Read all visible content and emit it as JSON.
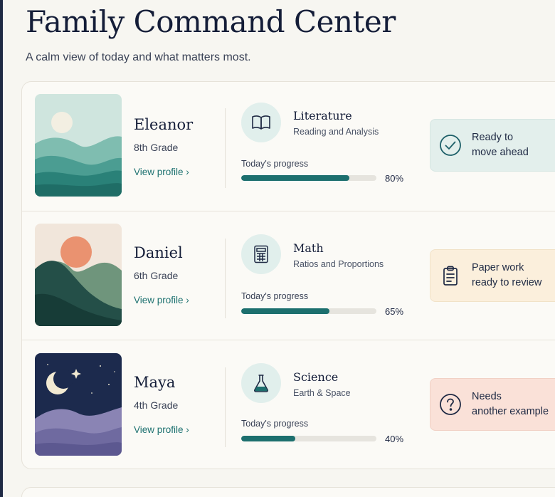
{
  "page": {
    "title": "Family Command Center",
    "subtitle": "A calm view of today and what matters most."
  },
  "progress_label": "Today's progress",
  "students": [
    {
      "name": "Eleanor",
      "grade": "8th Grade",
      "view_profile": "View profile ›",
      "thumbnail_icon": "sun-hills-illustration",
      "subject": "Literature",
      "topic": "Reading and Analysis",
      "subject_icon": "open-book-icon",
      "progress": 0.8,
      "progress_text": "80%",
      "status_icon": "check-circle-icon",
      "status_lines": [
        "Ready to",
        "move ahead"
      ],
      "status_color": "#e3efec"
    },
    {
      "name": "Daniel",
      "grade": "6th Grade",
      "view_profile": "View profile ›",
      "thumbnail_icon": "sunset-mountains-illustration",
      "subject": "Math",
      "topic": "Ratios and Proportions",
      "subject_icon": "calculator-icon",
      "progress": 0.65,
      "progress_text": "65%",
      "status_icon": "clipboard-icon",
      "status_lines": [
        "Paper work",
        "ready to review"
      ],
      "status_color": "#fbefdc"
    },
    {
      "name": "Maya",
      "grade": "4th Grade",
      "view_profile": "View profile ›",
      "thumbnail_icon": "night-moon-illustration",
      "subject": "Science",
      "topic": "Earth & Space",
      "subject_icon": "flask-icon",
      "progress": 0.4,
      "progress_text": "40%",
      "status_icon": "question-circle-icon",
      "status_lines": [
        "Needs",
        "another example"
      ],
      "status_color": "#fae1d8"
    }
  ],
  "colors": {
    "accent": "#1c6f6e",
    "title": "#141d38",
    "background": "#f7f6f1"
  }
}
